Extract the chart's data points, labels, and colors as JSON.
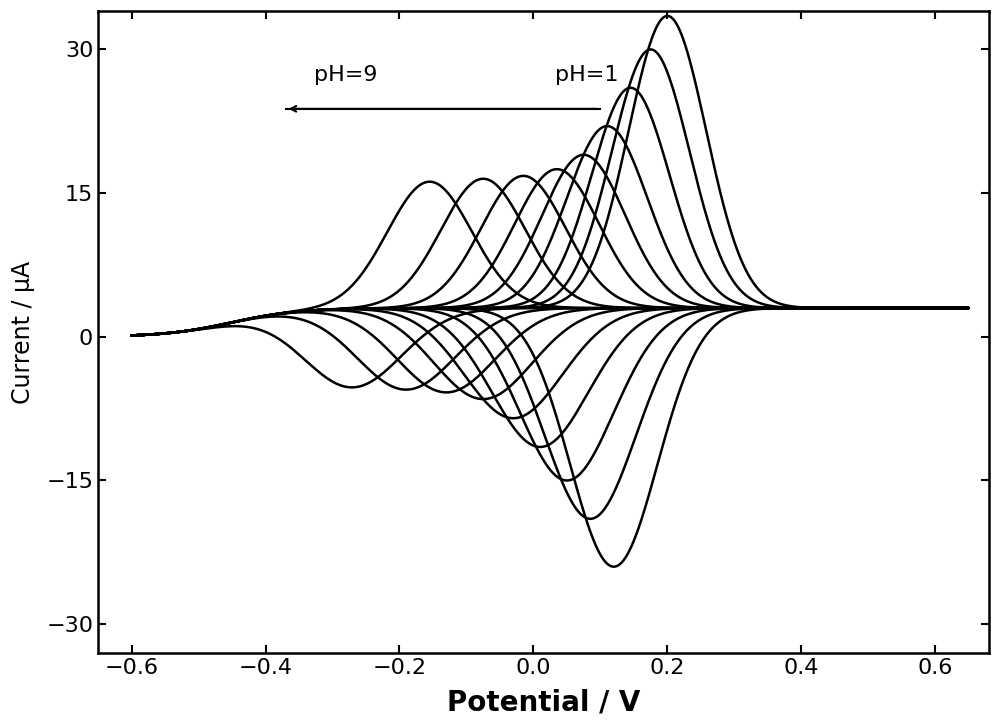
{
  "xlabel": "Potential / V",
  "ylabel": "Current / μA",
  "xlim": [
    -0.65,
    0.68
  ],
  "ylim": [
    -33,
    34
  ],
  "xticks": [
    -0.6,
    -0.4,
    -0.2,
    0.0,
    0.2,
    0.4,
    0.6
  ],
  "yticks": [
    -30,
    -15,
    0,
    15,
    30
  ],
  "xlabel_fontsize": 20,
  "ylabel_fontsize": 17,
  "tick_fontsize": 16,
  "annotation_fontsize": 16,
  "line_color": "#000000",
  "line_width": 1.8,
  "background_color": "#ffffff",
  "n_curves": 9,
  "anodic_peak_potentials": [
    0.2,
    0.175,
    0.145,
    0.11,
    0.075,
    0.035,
    -0.015,
    -0.075,
    -0.155
  ],
  "cathodic_peak_potentials": [
    0.12,
    0.085,
    0.05,
    0.01,
    -0.03,
    -0.075,
    -0.13,
    -0.19,
    -0.27
  ],
  "anodic_peak_currents": [
    30.5,
    27.0,
    23.0,
    19.0,
    16.0,
    14.5,
    13.8,
    13.5,
    13.2
  ],
  "cathodic_peak_currents": [
    -27.0,
    -22.0,
    -18.0,
    -14.5,
    -11.5,
    -9.5,
    -8.8,
    -8.5,
    -8.2
  ],
  "anodic_sigma": [
    0.058,
    0.058,
    0.058,
    0.06,
    0.062,
    0.063,
    0.063,
    0.063,
    0.063
  ],
  "cathodic_sigma": [
    0.065,
    0.068,
    0.07,
    0.072,
    0.073,
    0.073,
    0.073,
    0.073,
    0.073
  ]
}
